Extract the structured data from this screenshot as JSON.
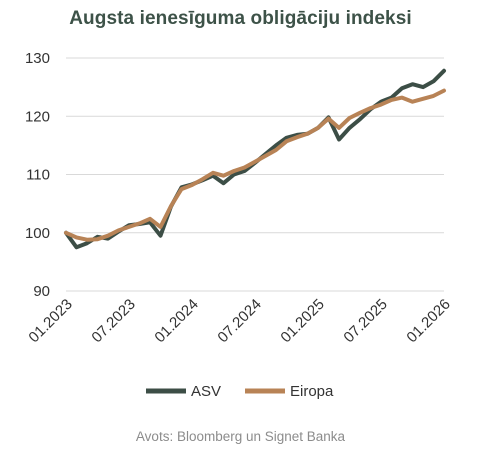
{
  "chart_data": {
    "type": "line",
    "title": "Augsta ienesīguma obligāciju indeksi",
    "xlabel": "",
    "ylabel": "",
    "ylim": [
      90,
      130
    ],
    "yticks": [
      90,
      100,
      110,
      120,
      130
    ],
    "xlim": [
      "2023-01",
      "2026-01"
    ],
    "xticks": [
      "01.2023",
      "07.2023",
      "01.2024",
      "07.2024",
      "01.2025",
      "07.2025",
      "01.2026"
    ],
    "grid": "horizontal",
    "legend": "bottom-center",
    "x": [
      "2023-01",
      "2023-02",
      "2023-03",
      "2023-04",
      "2023-05",
      "2023-06",
      "2023-07",
      "2023-08",
      "2023-09",
      "2023-10",
      "2023-11",
      "2023-12",
      "2024-01",
      "2024-02",
      "2024-03",
      "2024-04",
      "2024-05",
      "2024-06",
      "2024-07",
      "2024-08",
      "2024-09",
      "2024-10",
      "2024-11",
      "2024-12",
      "2025-01",
      "2025-02",
      "2025-03",
      "2025-04",
      "2025-05",
      "2025-06",
      "2025-07",
      "2025-08",
      "2025-09",
      "2025-10",
      "2025-11",
      "2025-12",
      "2026-01"
    ],
    "series": [
      {
        "name": "ASV",
        "color": "#3c4e46",
        "values": [
          100.0,
          97.5,
          98.2,
          99.3,
          99.0,
          100.2,
          101.3,
          101.5,
          101.8,
          99.5,
          104.5,
          107.8,
          108.3,
          109.0,
          109.8,
          108.5,
          110.0,
          110.6,
          112.0,
          113.5,
          115.0,
          116.3,
          116.8,
          117.0,
          118.0,
          119.8,
          116.0,
          118.0,
          119.5,
          121.2,
          122.5,
          123.2,
          124.8,
          125.5,
          125.0,
          126.0,
          127.8
        ]
      },
      {
        "name": "Eiropa",
        "color": "#b88356",
        "values": [
          100.0,
          99.2,
          98.8,
          98.9,
          99.5,
          100.4,
          101.0,
          101.6,
          102.4,
          101.0,
          104.6,
          107.5,
          108.2,
          109.2,
          110.3,
          109.8,
          110.6,
          111.2,
          112.2,
          113.2,
          114.2,
          115.7,
          116.4,
          117.0,
          118.0,
          119.6,
          118.0,
          119.7,
          120.6,
          121.4,
          122.0,
          122.8,
          123.2,
          122.5,
          123.0,
          123.5,
          124.4
        ]
      }
    ]
  },
  "legend_items": [
    "ASV",
    "Eiropa"
  ],
  "source_note": "Avots: Bloomberg un Signet Banka"
}
